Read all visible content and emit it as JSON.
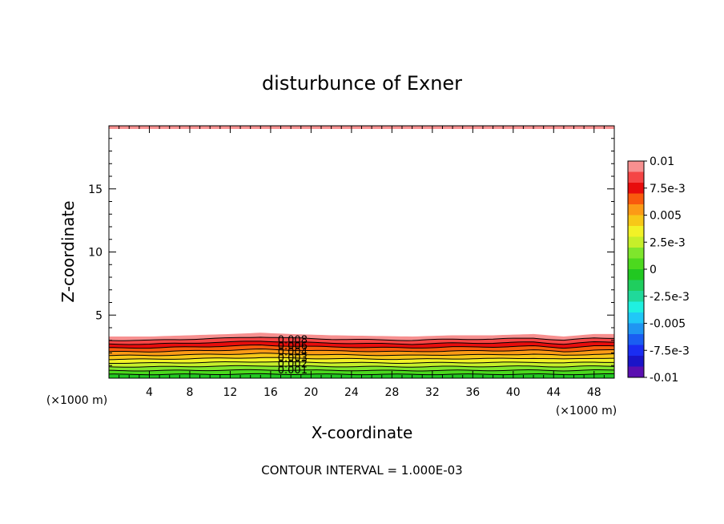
{
  "chart_data": {
    "type": "heatmap",
    "title": "disturbunce of Exner",
    "xlabel": "X-coordinate",
    "ylabel": "Z-coordinate",
    "x_unit": "(×1000 m)",
    "y_unit": "(×1000 m)",
    "xlim": [
      0,
      50
    ],
    "ylim": [
      0,
      20
    ],
    "x_ticks": [
      4,
      8,
      12,
      16,
      20,
      24,
      28,
      32,
      36,
      40,
      44,
      48
    ],
    "y_ticks": [
      5,
      10,
      15
    ],
    "colorbar": {
      "range": [
        -0.01,
        0.01
      ],
      "tick_labels": [
        "0.01",
        "7.5e-3",
        "0.005",
        "2.5e-3",
        "0",
        "-2.5e-3",
        "-0.005",
        "-7.5e-3",
        "-0.01"
      ],
      "colors": [
        "#f79090",
        "#f54545",
        "#e80c0c",
        "#f95a0d",
        "#fc9a16",
        "#f7c818",
        "#f2f227",
        "#c6ef2a",
        "#7fe62c",
        "#4cd91e",
        "#21c821",
        "#1fce5e",
        "#20d99a",
        "#1ff0e0",
        "#20c8f7",
        "#1f95f2",
        "#1a5ef2",
        "#1a2df2",
        "#1a14c8",
        "#5a0fb0"
      ]
    },
    "contour_labels": [
      "0.008",
      "0.006",
      "0.004",
      "0.003",
      "0.002",
      "0.001"
    ],
    "boundary_height": [
      [
        0,
        3.3
      ],
      [
        4,
        3.3
      ],
      [
        8,
        3.4
      ],
      [
        12,
        3.5
      ],
      [
        15,
        3.6
      ],
      [
        18,
        3.5
      ],
      [
        22,
        3.4
      ],
      [
        26,
        3.35
      ],
      [
        30,
        3.3
      ],
      [
        34,
        3.4
      ],
      [
        38,
        3.4
      ],
      [
        42,
        3.5
      ],
      [
        45,
        3.3
      ],
      [
        48,
        3.5
      ],
      [
        50,
        3.5
      ]
    ],
    "top_band_thickness": 0.25,
    "annotation": "CONTOUR INTERVAL = 1.000E-03"
  }
}
